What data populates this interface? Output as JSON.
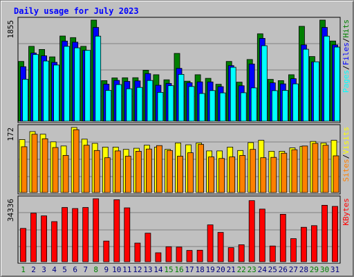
{
  "colors": {
    "background": "#c0c0c0",
    "title": "#0000ff",
    "hits": "#007f00",
    "files": "#0000ff",
    "pages": "#00ffff",
    "visits": "#ffff00",
    "sites": "#ff8000",
    "kbytes": "#ff0000",
    "weekend_day": "#007f00",
    "weekday": "#000080"
  },
  "chart_data": {
    "type": "bar",
    "title": "Daily usage for July 2023",
    "categories": [
      "1",
      "2",
      "3",
      "4",
      "5",
      "6",
      "7",
      "8",
      "9",
      "10",
      "11",
      "12",
      "13",
      "14",
      "15",
      "16",
      "17",
      "18",
      "19",
      "20",
      "21",
      "22",
      "23",
      "24",
      "25",
      "26",
      "27",
      "28",
      "29",
      "30",
      "31"
    ],
    "weekend_days": [
      "1",
      "8",
      "15",
      "16",
      "22",
      "23",
      "29",
      "30"
    ],
    "panels": [
      {
        "name": "hits-files-pages",
        "ymax_label": "1855",
        "ylim": [
          0,
          1855
        ],
        "legend": [
          {
            "text": "Pages",
            "color": "#00ffff"
          },
          {
            "text": "/",
            "color": "#000000"
          },
          {
            "text": "Files",
            "color": "#0000ff"
          },
          {
            "text": "/",
            "color": "#000000"
          },
          {
            "text": "Hits",
            "color": "#007f00"
          }
        ],
        "series": [
          {
            "name": "Hits",
            "color": "#007f00",
            "values": [
              1096,
              1373,
              1316,
              1180,
              1563,
              1534,
              1373,
              1855,
              744,
              794,
              796,
              798,
              935,
              853,
              760,
              1244,
              735,
              853,
              787,
              677,
              1096,
              716,
              1132,
              1604,
              768,
              744,
              852,
              1741,
              1187,
              1855,
              1471
            ]
          },
          {
            "name": "Files",
            "color": "#0000ff",
            "values": [
              1000,
              1250,
              1200,
              1080,
              1470,
              1450,
              1300,
              1720,
              680,
              748,
              730,
              740,
              873,
              660,
              692,
              970,
              707,
              722,
              720,
              634,
              1020,
              650,
              1050,
              1520,
              704,
              685,
              780,
              1400,
              1087,
              1720,
              1400
            ]
          },
          {
            "name": "Pages",
            "color": "#00ffff",
            "values": [
              770,
              1223,
              1104,
              1030,
              1373,
              1345,
              1300,
              1560,
              566,
              672,
              594,
              620,
              747,
              528,
              652,
              859,
              636,
              508,
              562,
              520,
              990,
              522,
              611,
              1385,
              560,
              565,
              685,
              1320,
              1090,
              1560,
              1359
            ]
          }
        ]
      },
      {
        "name": "visits-sites",
        "ymax_label": "172",
        "ylim": [
          0,
          172
        ],
        "legend": [
          {
            "text": "Sites",
            "color": "#ff8000"
          },
          {
            "text": "/",
            "color": "#000000"
          },
          {
            "text": "Visits",
            "color": "#ffff00"
          }
        ],
        "series": [
          {
            "name": "Visits",
            "color": "#ffff00",
            "values": [
              140,
              161,
              154,
              134,
              123,
              172,
              141,
              130,
              120,
              120,
              114,
              117,
              125,
              120,
              114,
              131,
              126,
              131,
              110,
              110,
              120,
              111,
              132,
              138,
              109,
              109,
              118,
              122,
              135,
              131,
              138
            ]
          },
          {
            "name": "Sites",
            "color": "#ff8000",
            "values": [
              121,
              154,
              142,
              119,
              98,
              166,
              125,
              111,
              92,
              110,
              96,
              109,
              115,
              124,
              111,
              96,
              105,
              127,
              94,
              90,
              94,
              98,
              114,
              92,
              93,
              104,
              113,
              123,
              130,
              125,
              97
            ]
          }
        ]
      },
      {
        "name": "kbytes",
        "ymax_label": "34336",
        "ylim": [
          0,
          34336
        ],
        "legend": [
          {
            "text": "KBytes",
            "color": "#ff0000"
          }
        ],
        "series": [
          {
            "name": "KBytes",
            "color": "#ff0000",
            "values": [
              18200,
              26500,
              25000,
              21900,
              29600,
              29000,
              29600,
              34336,
              11300,
              33800,
              29400,
              10200,
              15600,
              4900,
              8200,
              8000,
              6200,
              6300,
              20100,
              16000,
              7700,
              9300,
              33300,
              28700,
              8600,
              25900,
              12600,
              18800,
              19700,
              30800,
              30200
            ]
          }
        ]
      }
    ]
  }
}
